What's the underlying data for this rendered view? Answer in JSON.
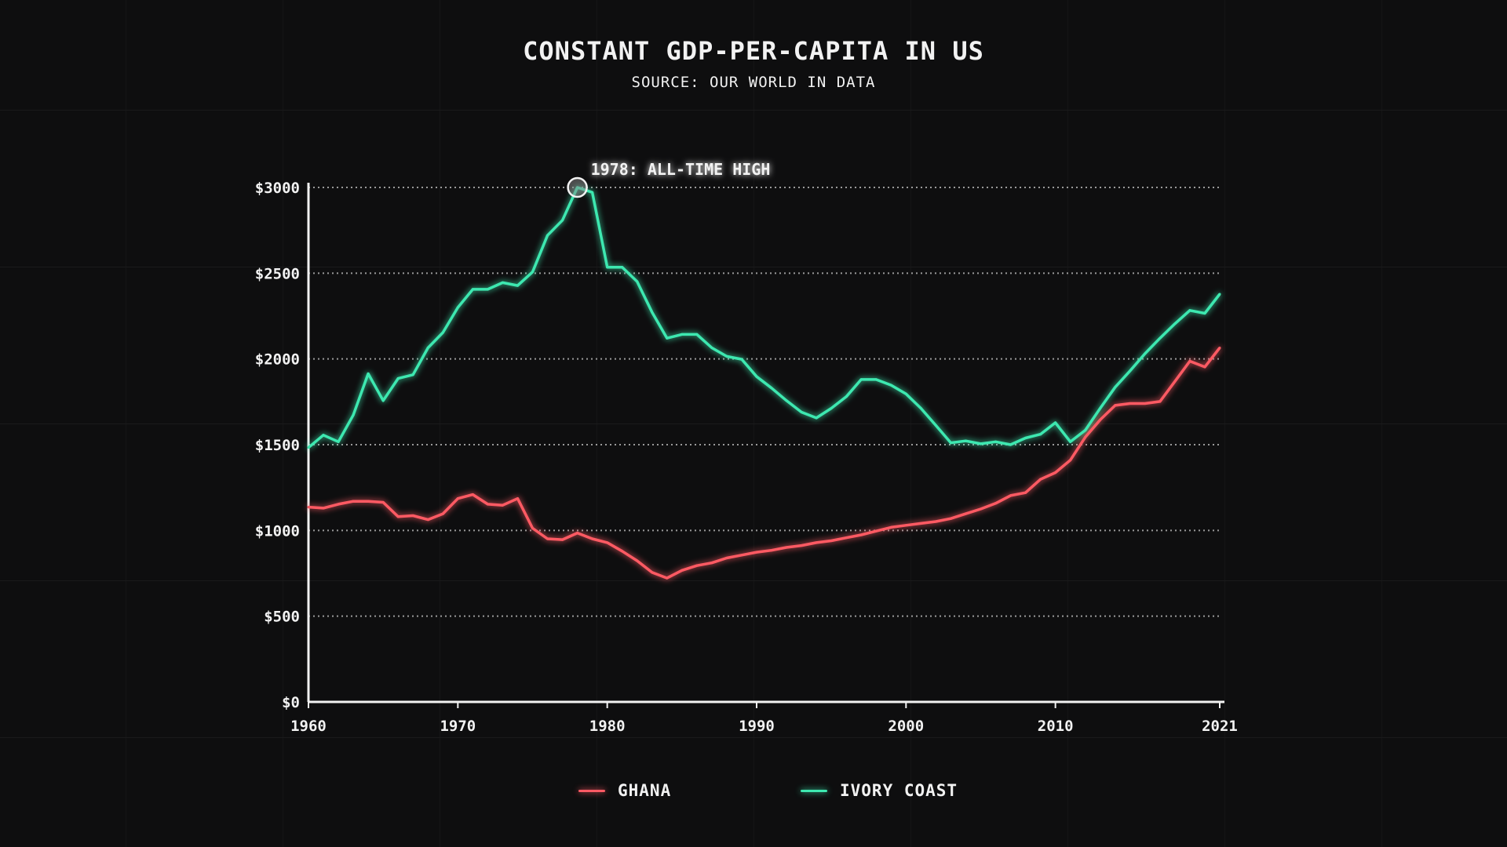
{
  "chart_data": {
    "type": "line",
    "title": "CONSTANT GDP-PER-CAPITA IN US",
    "subtitle": "SOURCE: OUR WORLD IN DATA",
    "xlabel": "",
    "ylabel": "",
    "xlim": [
      1960,
      2021
    ],
    "ylim": [
      0,
      3000
    ],
    "x_ticks": [
      "1960",
      "1970",
      "1980",
      "1990",
      "2000",
      "2010",
      "2021"
    ],
    "y_ticks": [
      "$0",
      "$500",
      "$1000",
      "$1500",
      "$2000",
      "$2500",
      "$3000"
    ],
    "grid": "horizontal dotted",
    "legend_position": "bottom",
    "annotation": {
      "label": "1978: ALL-TIME HIGH",
      "x": 1978,
      "y": 3000
    },
    "x": [
      1960,
      1961,
      1962,
      1963,
      1964,
      1965,
      1966,
      1967,
      1968,
      1969,
      1970,
      1971,
      1972,
      1973,
      1974,
      1975,
      1976,
      1977,
      1978,
      1979,
      1980,
      1981,
      1982,
      1983,
      1984,
      1985,
      1986,
      1987,
      1988,
      1989,
      1990,
      1991,
      1992,
      1993,
      1994,
      1995,
      1996,
      1997,
      1998,
      1999,
      2000,
      2001,
      2002,
      2003,
      2004,
      2005,
      2006,
      2007,
      2008,
      2009,
      2010,
      2011,
      2012,
      2013,
      2014,
      2015,
      2016,
      2017,
      2018,
      2019,
      2020,
      2021
    ],
    "series": [
      {
        "name": "GHANA",
        "color": "#ff5a64",
        "values": [
          1136,
          1130,
          1153,
          1170,
          1170,
          1164,
          1080,
          1086,
          1063,
          1097,
          1186,
          1209,
          1153,
          1147,
          1186,
          1013,
          951,
          946,
          985,
          951,
          929,
          879,
          823,
          755,
          722,
          767,
          795,
          811,
          839,
          856,
          873,
          884,
          901,
          912,
          929,
          940,
          957,
          974,
          996,
          1018,
          1030,
          1041,
          1052,
          1069,
          1097,
          1125,
          1158,
          1203,
          1220,
          1298,
          1337,
          1410,
          1544,
          1645,
          1729,
          1740,
          1740,
          1752,
          1869,
          1987,
          1953,
          2065
        ]
      },
      {
        "name": "IVORY COAST",
        "color": "#3ee8b0",
        "values": [
          1483,
          1556,
          1517,
          1673,
          1914,
          1757,
          1886,
          1908,
          2065,
          2154,
          2300,
          2406,
          2406,
          2445,
          2428,
          2507,
          2720,
          2809,
          3000,
          2971,
          2535,
          2535,
          2451,
          2272,
          2121,
          2143,
          2143,
          2065,
          2015,
          1998,
          1897,
          1830,
          1757,
          1690,
          1656,
          1712,
          1780,
          1880,
          1880,
          1847,
          1796,
          1712,
          1612,
          1511,
          1522,
          1505,
          1517,
          1500,
          1539,
          1561,
          1628,
          1517,
          1584,
          1712,
          1835,
          1931,
          2031,
          2121,
          2205,
          2283,
          2266,
          2378
        ]
      }
    ]
  }
}
